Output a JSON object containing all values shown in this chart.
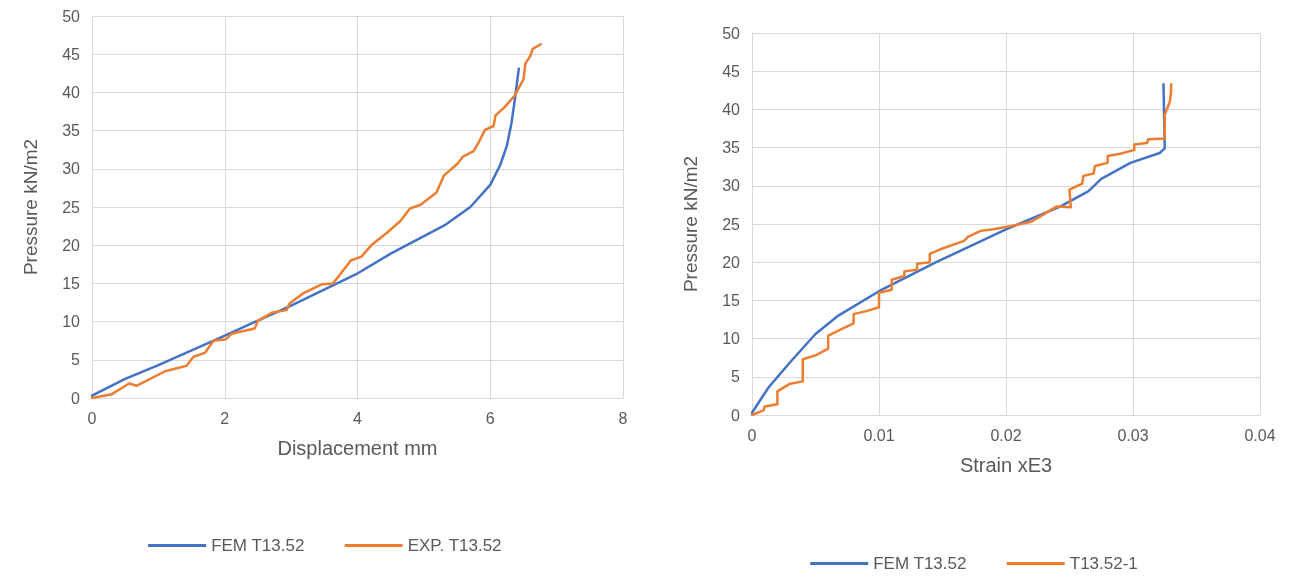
{
  "chart_data": [
    {
      "type": "line",
      "xlabel": "Displacement mm",
      "ylabel": "Pressure kN/m2",
      "xlim": [
        0,
        8
      ],
      "xticks": [
        0,
        2,
        4,
        6,
        8
      ],
      "ylim": [
        0,
        50
      ],
      "yticks": [
        0,
        5,
        10,
        15,
        20,
        25,
        30,
        35,
        40,
        45,
        50
      ],
      "grid": true,
      "legend": "bottom",
      "marker": "none",
      "line_style": "solid",
      "series": [
        {
          "name": "FEM T13.52",
          "color": "#4472c4",
          "x": [
            0,
            0.5,
            1,
            1.96,
            3,
            3.98,
            4.5,
            5.33,
            5.7,
            6.0,
            6.15,
            6.25,
            6.32,
            6.37,
            6.43
          ],
          "values": [
            0.3,
            2.5,
            4.3,
            8.0,
            12.1,
            16.2,
            18.9,
            22.7,
            25,
            27.9,
            30.5,
            33,
            36,
            39,
            43.1
          ]
        },
        {
          "name": "EXP. T13.52",
          "color": "#ed7d31",
          "x": [
            0,
            0.3,
            0.56,
            0.67,
            1.1,
            1.42,
            1.53,
            1.7,
            1.83,
            2.02,
            2.1,
            2.45,
            2.5,
            2.72,
            2.93,
            2.98,
            3.2,
            3.47,
            3.63,
            3.74,
            3.9,
            4.06,
            4.22,
            4.44,
            4.65,
            4.79,
            4.95,
            5.19,
            5.3,
            5.51,
            5.59,
            5.75,
            5.84,
            5.92,
            6.05,
            6.08,
            6.21,
            6.37,
            6.5,
            6.53,
            6.6,
            6.64,
            6.76
          ],
          "values": [
            0,
            0.5,
            1.9,
            1.6,
            3.5,
            4.2,
            5.4,
            5.9,
            7.5,
            7.7,
            8.4,
            9.1,
            10.1,
            11.2,
            11.5,
            12.4,
            13.8,
            14.9,
            15,
            16.2,
            18,
            18.5,
            20.1,
            21.6,
            23.2,
            24.8,
            25.3,
            26.9,
            29.1,
            30.7,
            31.6,
            32.3,
            33.7,
            35.1,
            35.6,
            37,
            38,
            39.6,
            41.7,
            43.8,
            44.7,
            45.7,
            46.3
          ]
        }
      ]
    },
    {
      "type": "line",
      "xlabel": "Strain xE3",
      "ylabel": "Pressure kN/m2",
      "xlim": [
        0,
        0.04
      ],
      "xticks": [
        0,
        0.01,
        0.02,
        0.03,
        0.04
      ],
      "ylim": [
        0,
        50
      ],
      "yticks": [
        0,
        5,
        10,
        15,
        20,
        25,
        30,
        35,
        40,
        45,
        50
      ],
      "grid": true,
      "legend": "bottom",
      "marker": "none",
      "line_style": "solid",
      "series": [
        {
          "name": "FEM T13.52",
          "color": "#4472c4",
          "x": [
            0,
            0.0013,
            0.003,
            0.005,
            0.0067,
            0.01,
            0.0145,
            0.02,
            0.0243,
            0.0265,
            0.0275,
            0.0298,
            0.0321,
            0.0325,
            0.0324
          ],
          "values": [
            0.3,
            3.6,
            6.9,
            10.6,
            12.9,
            16.2,
            20,
            24.3,
            27.3,
            29.3,
            30.9,
            33,
            34.3,
            34.9,
            43.3
          ]
        },
        {
          "name": "T13.52-1",
          "color": "#ed7d31",
          "x": [
            0,
            0.0009,
            0.001,
            0.002,
            0.002,
            0.003,
            0.004,
            0.004,
            0.005,
            0.006,
            0.006,
            0.007,
            0.008,
            0.008,
            0.009,
            0.01,
            0.01,
            0.011,
            0.011,
            0.012,
            0.012,
            0.013,
            0.013,
            0.014,
            0.014,
            0.015,
            0.0167,
            0.017,
            0.018,
            0.019,
            0.0203,
            0.022,
            0.023,
            0.024,
            0.0251,
            0.025,
            0.026,
            0.0261,
            0.0269,
            0.027,
            0.028,
            0.028,
            0.029,
            0.0301,
            0.0301,
            0.0311,
            0.0312,
            0.0325,
            0.0325,
            0.0329,
            0.033,
            0.033
          ],
          "values": [
            0,
            0.6,
            1.1,
            1.4,
            3.1,
            4.1,
            4.4,
            7.3,
            7.8,
            8.7,
            10.4,
            11.2,
            12,
            13.2,
            13.6,
            14.1,
            16,
            16.4,
            17.7,
            18.2,
            18.8,
            19,
            19.8,
            20,
            21.1,
            21.8,
            22.8,
            23.3,
            24.1,
            24.3,
            24.7,
            25.3,
            26.3,
            27.3,
            27.2,
            29.5,
            30.3,
            31.3,
            31.6,
            32.6,
            33,
            33.9,
            34.2,
            34.7,
            35.4,
            35.6,
            36.1,
            36.2,
            39.3,
            41,
            42.4,
            43.3
          ]
        }
      ]
    }
  ]
}
